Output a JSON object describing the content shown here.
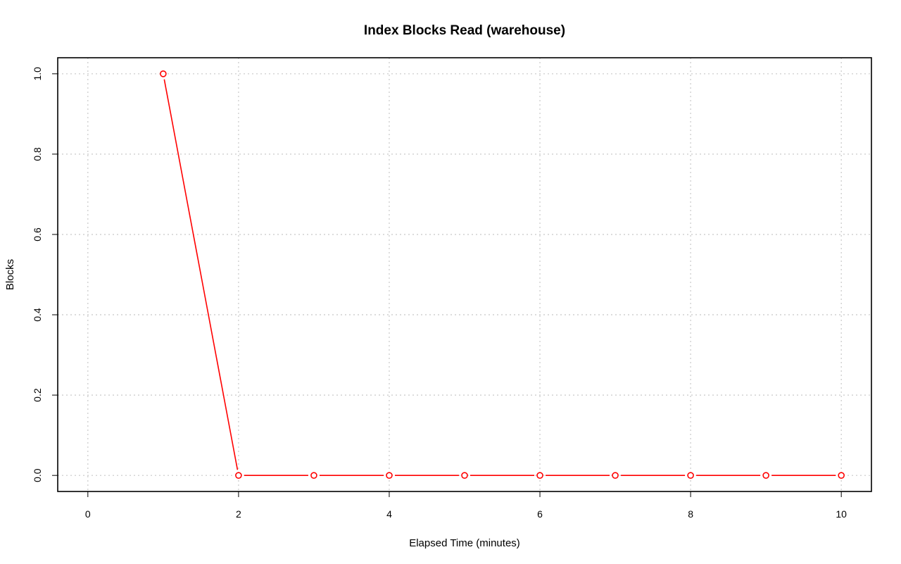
{
  "chart_data": {
    "type": "line",
    "title": "Index Blocks Read (warehouse)",
    "xlabel": "Elapsed Time (minutes)",
    "ylabel": "Blocks",
    "xlim": [
      0,
      10
    ],
    "ylim": [
      0,
      1
    ],
    "x_ticks": [
      0,
      2,
      4,
      6,
      8,
      10
    ],
    "x_tick_labels": [
      "0",
      "2",
      "4",
      "6",
      "8",
      "10"
    ],
    "y_ticks": [
      0,
      0.2,
      0.4,
      0.6,
      0.8,
      1.0
    ],
    "y_tick_labels": [
      "0.0",
      "0.2",
      "0.4",
      "0.6",
      "0.8",
      "1.0"
    ],
    "grid": true,
    "series": [
      {
        "color": "#ff0000",
        "x": [
          1,
          2,
          3,
          4,
          5,
          6,
          7,
          8,
          9,
          10
        ],
        "y": [
          1,
          0,
          0,
          0,
          0,
          0,
          0,
          0,
          0,
          0
        ]
      }
    ]
  }
}
